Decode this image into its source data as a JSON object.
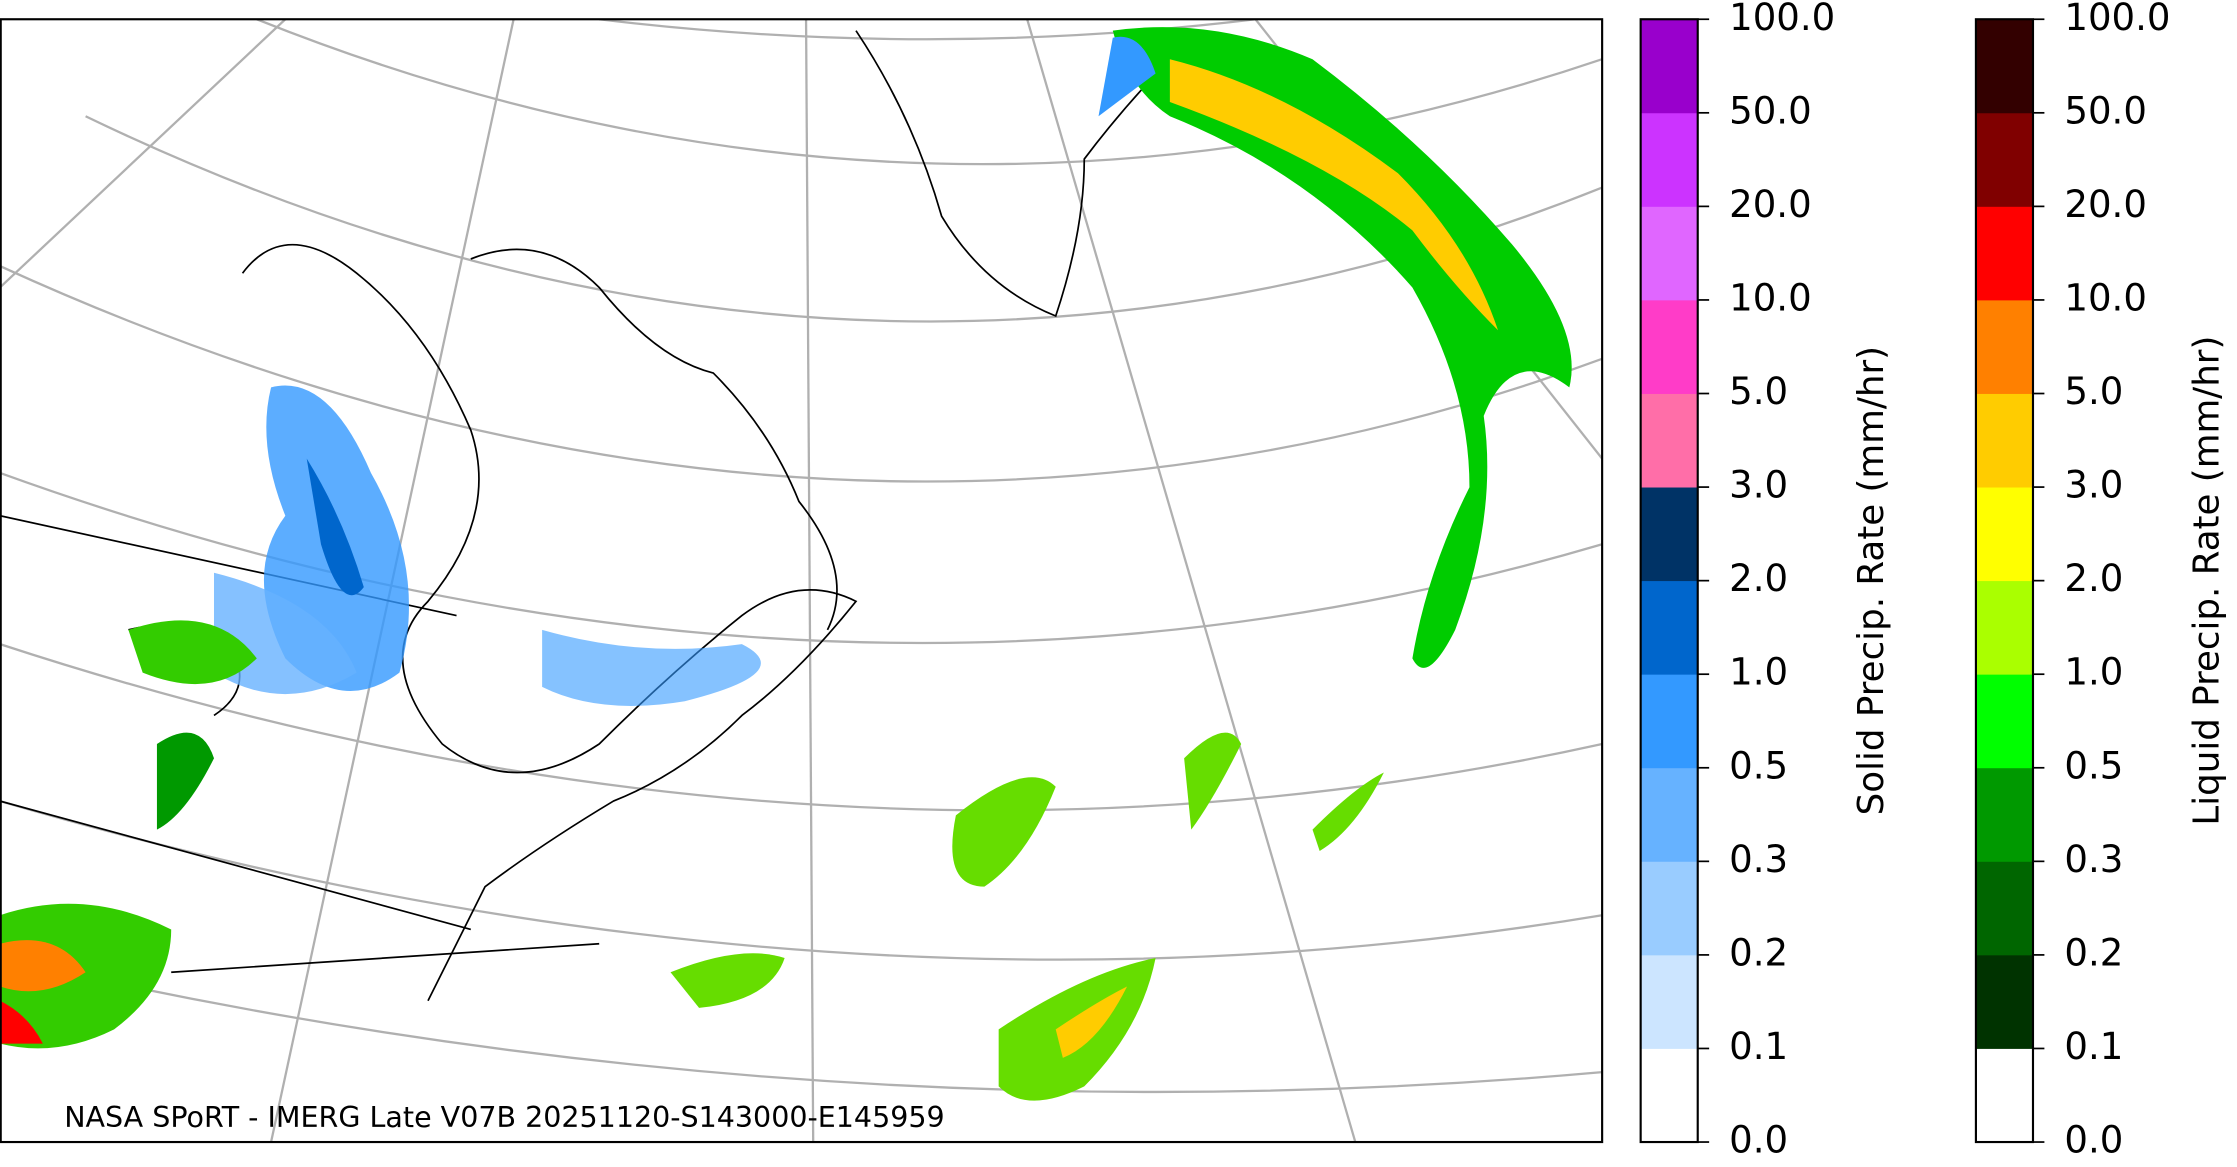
{
  "map": {
    "credit": "NASA SPoRT - IMERG Late V07B 20251120-S143000-E145959"
  },
  "colorbars": [
    {
      "label": "Solid Precip. Rate (mm/hr)",
      "ticks": [
        {
          "value": 0,
          "label": "0.0"
        },
        {
          "value": 0.1,
          "label": "0.1"
        },
        {
          "value": 0.2,
          "label": "0.2"
        },
        {
          "value": 0.3,
          "label": "0.3"
        },
        {
          "value": 0.5,
          "label": "0.5"
        },
        {
          "value": 1,
          "label": "1.0"
        },
        {
          "value": 2,
          "label": "2.0"
        },
        {
          "value": 3,
          "label": "3.0"
        },
        {
          "value": 5,
          "label": "5.0"
        },
        {
          "value": 10,
          "label": "10.0"
        },
        {
          "value": 20,
          "label": "20.0"
        },
        {
          "value": 50,
          "label": "50.0"
        },
        {
          "value": 100,
          "label": "100.0"
        }
      ],
      "colors": [
        "#ffffff",
        "#cce5ff",
        "#99ccff",
        "#66b2ff",
        "#3399ff",
        "#0066cc",
        "#003366",
        "#ff6ea8",
        "#ff3cc8",
        "#e066ff",
        "#cc33ff",
        "#9900cc"
      ]
    },
    {
      "label": "Liquid Precip. Rate (mm/hr)",
      "ticks": [
        {
          "value": 0,
          "label": "0.0"
        },
        {
          "value": 0.1,
          "label": "0.1"
        },
        {
          "value": 0.2,
          "label": "0.2"
        },
        {
          "value": 0.3,
          "label": "0.3"
        },
        {
          "value": 0.5,
          "label": "0.5"
        },
        {
          "value": 1,
          "label": "1.0"
        },
        {
          "value": 2,
          "label": "2.0"
        },
        {
          "value": 3,
          "label": "3.0"
        },
        {
          "value": 5,
          "label": "5.0"
        },
        {
          "value": 10,
          "label": "10.0"
        },
        {
          "value": 20,
          "label": "20.0"
        },
        {
          "value": 50,
          "label": "50.0"
        },
        {
          "value": 100,
          "label": "100.0"
        }
      ],
      "colors": [
        "#ffffff",
        "#003300",
        "#006600",
        "#009900",
        "#00ff00",
        "#aaff00",
        "#ffff00",
        "#ffcc00",
        "#ff8000",
        "#ff0000",
        "#800000",
        "#330000"
      ]
    }
  ]
}
